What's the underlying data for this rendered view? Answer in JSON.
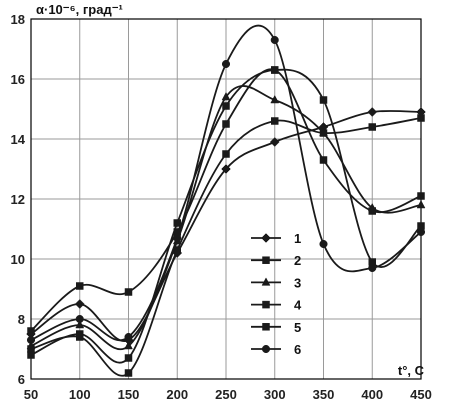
{
  "chart_data": {
    "type": "line",
    "title": "",
    "xlabel": "t°, C",
    "ylabel": "α·10⁻⁶, град⁻¹",
    "xlim": [
      50,
      450
    ],
    "ylim": [
      6,
      18
    ],
    "x_ticks": [
      "50",
      "100",
      "150",
      "200",
      "250",
      "300",
      "350",
      "400",
      "450"
    ],
    "y_ticks": [
      "6",
      "8",
      "10",
      "12",
      "14",
      "16",
      "18"
    ],
    "grid": true,
    "legend_position": "center-right",
    "smooth": true,
    "colors": {
      "line": "#1a1a1a",
      "grid": "#9a9a9a",
      "axis": "#000000"
    },
    "x": [
      50,
      100,
      150,
      200,
      250,
      300,
      350,
      400,
      450
    ],
    "series": [
      {
        "name": "1",
        "marker": "diamond",
        "values": [
          7.5,
          8.5,
          7.3,
          10.2,
          13.0,
          13.9,
          14.4,
          14.9,
          14.9
        ]
      },
      {
        "name": "2",
        "marker": "square",
        "values": [
          7.0,
          7.4,
          6.2,
          10.3,
          13.5,
          14.6,
          14.2,
          14.4,
          14.7
        ]
      },
      {
        "name": "3",
        "marker": "triangle",
        "values": [
          7.1,
          7.8,
          7.1,
          10.6,
          15.4,
          15.3,
          14.2,
          11.7,
          11.8
        ]
      },
      {
        "name": "4",
        "marker": "square",
        "values": [
          7.6,
          9.1,
          8.9,
          10.9,
          14.5,
          16.3,
          13.3,
          11.6,
          12.1
        ]
      },
      {
        "name": "5",
        "marker": "square",
        "values": [
          6.8,
          7.5,
          6.7,
          11.2,
          15.1,
          16.3,
          15.3,
          9.9,
          11.1
        ]
      },
      {
        "name": "6",
        "marker": "circle",
        "values": [
          7.3,
          8.0,
          7.4,
          10.7,
          16.5,
          17.3,
          10.5,
          9.7,
          10.9
        ]
      }
    ]
  }
}
